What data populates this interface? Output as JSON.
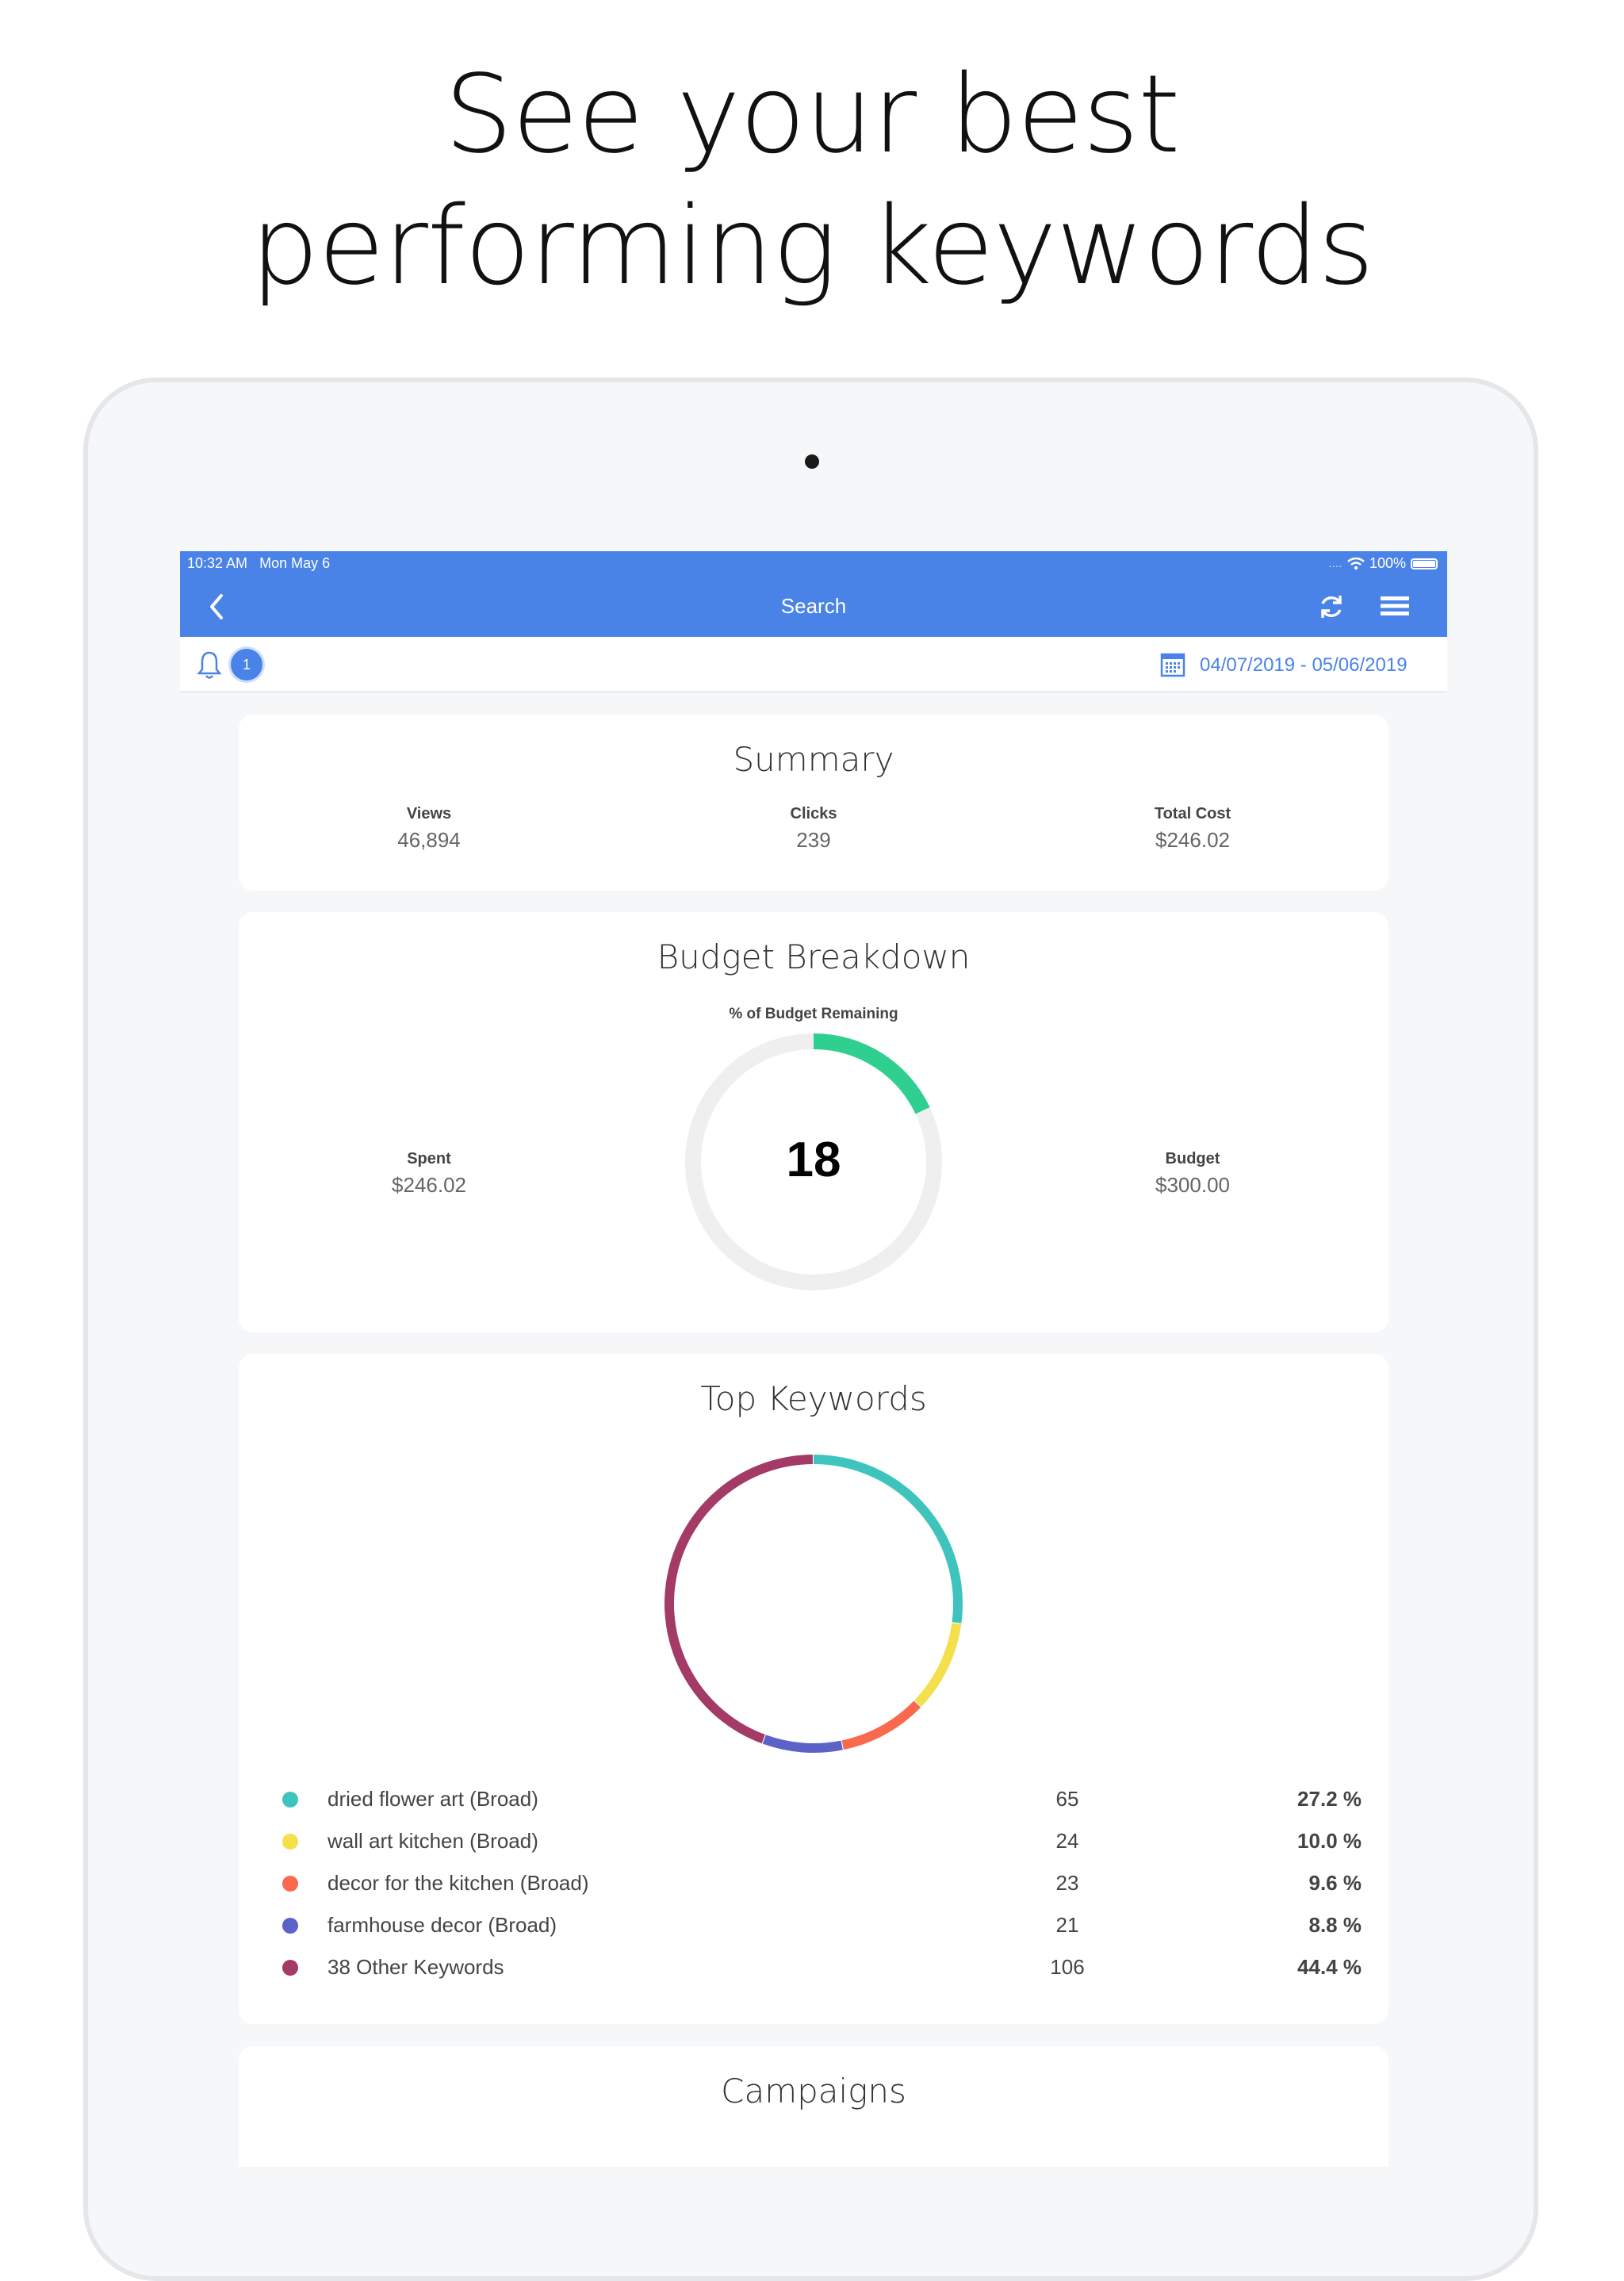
{
  "headline": {
    "line1": "See your best",
    "line2": "performing keywords"
  },
  "status_bar": {
    "time": "10:32 AM",
    "date": "Mon May 6",
    "battery": "100%"
  },
  "nav": {
    "title": "Search",
    "back_icon": "chevron-left-icon",
    "refresh_icon": "refresh-icon",
    "menu_icon": "hamburger-menu-icon"
  },
  "sub_bar": {
    "notification_count": "1",
    "date_range": "04/07/2019 - 05/06/2019"
  },
  "summary": {
    "title": "Summary",
    "stats": [
      {
        "label": "Views",
        "value": "46,894"
      },
      {
        "label": "Clicks",
        "value": "239"
      },
      {
        "label": "Total Cost",
        "value": "$246.02"
      }
    ]
  },
  "budget": {
    "title": "Budget Breakdown",
    "gauge_label": "% of Budget Remaining",
    "remaining_percent": "18",
    "spent": {
      "label": "Spent",
      "value": "$246.02"
    },
    "budget": {
      "label": "Budget",
      "value": "$300.00"
    },
    "colors": {
      "arc": "#2fcf8f",
      "track": "#efefef"
    }
  },
  "top_keywords": {
    "title": "Top Keywords",
    "chart_data": {
      "type": "pie",
      "categories": [
        "dried flower art (Broad)",
        "wall art kitchen (Broad)",
        "decor for the kitchen (Broad)",
        "farmhouse decor (Broad)",
        "38 Other Keywords"
      ],
      "values": [
        65,
        24,
        23,
        21,
        106
      ],
      "percents": [
        "27.2 %",
        "10.0 %",
        "9.6 %",
        "8.8 %",
        "44.4 %"
      ],
      "colors": [
        "#3fc4bd",
        "#f4e04d",
        "#f9694d",
        "#5b63c9",
        "#a43a66"
      ]
    }
  },
  "campaigns": {
    "title": "Campaigns"
  }
}
